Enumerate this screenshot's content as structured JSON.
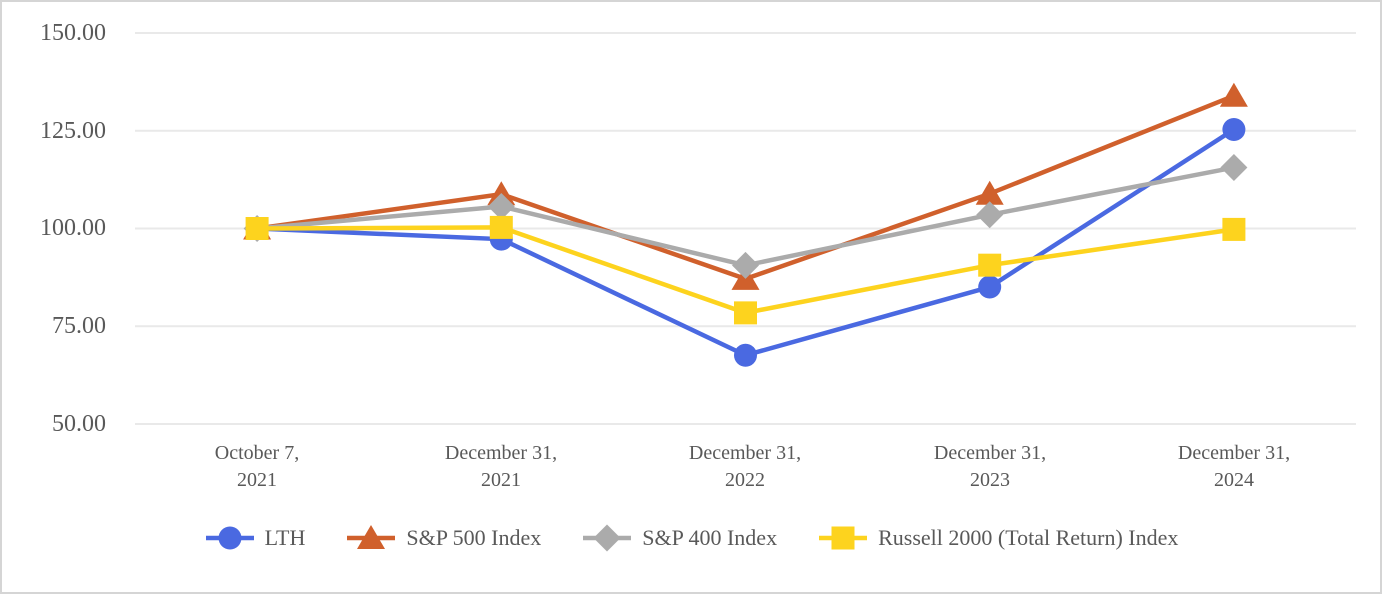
{
  "chart_data": {
    "type": "line",
    "title": "",
    "description": "Indexed total return comparison line chart (base 100), no visible title",
    "categories": [
      "October 7, 2021",
      "December 31, 2021",
      "December 31, 2022",
      "December 31, 2023",
      "December 31, 2024"
    ],
    "categories_display": [
      {
        "line1": "October 7,",
        "line2": "2021"
      },
      {
        "line1": "December 31,",
        "line2": "2021"
      },
      {
        "line1": "December 31,",
        "line2": "2022"
      },
      {
        "line1": "December 31,",
        "line2": "2023"
      },
      {
        "line1": "December 31,",
        "line2": "2024"
      }
    ],
    "yticks": [
      {
        "label": "150.00",
        "value": 150
      },
      {
        "label": "125.00",
        "value": 125
      },
      {
        "label": "100.00",
        "value": 100
      },
      {
        "label": "75.00",
        "value": 75
      },
      {
        "label": "50.00",
        "value": 50
      }
    ],
    "ylim": [
      50,
      150
    ],
    "grid": true,
    "legend_position": "bottom",
    "xlabel": "",
    "ylabel": "",
    "series": [
      {
        "name": "LTH",
        "marker": "circle",
        "color": "#4A69E1",
        "values": [
          100.0,
          97.27,
          67.58,
          85.04,
          125.31
        ]
      },
      {
        "name": "S&P 500 Index",
        "marker": "triangle",
        "color": "#D0602C",
        "values": [
          100.0,
          108.77,
          87.13,
          108.9,
          133.94
        ]
      },
      {
        "name": "S&P 400 Index",
        "marker": "diamond",
        "color": "#ABABAB",
        "values": [
          100.0,
          105.63,
          90.57,
          103.51,
          115.59
        ]
      },
      {
        "name": "Russell 2000 (Total Return) Index",
        "marker": "square",
        "color": "#FDD31E",
        "values": [
          100.0,
          100.28,
          78.42,
          90.62,
          99.77
        ]
      }
    ],
    "colors": {
      "grid": "#E9E9E9",
      "text": "#595959",
      "border": "#D5D5D5",
      "background": "#FFFFFF"
    }
  }
}
